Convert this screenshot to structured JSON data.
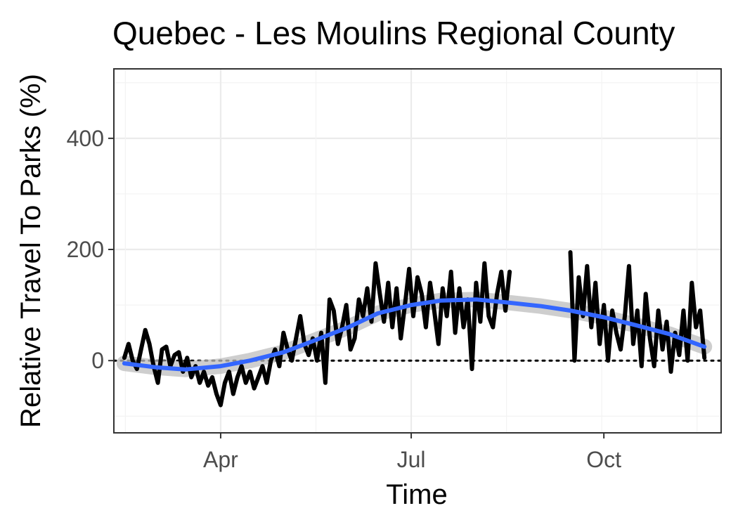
{
  "chart_data": {
    "type": "line",
    "title": "Quebec - Les Moulins Regional County",
    "xlabel": "Time",
    "ylabel": "Relative Travel To Parks (%)",
    "x_range": [
      "2020-02-10",
      "2020-11-26"
    ],
    "ylim": [
      -130,
      525
    ],
    "x_ticks": [
      {
        "date": "2020-04-01",
        "label": "Apr"
      },
      {
        "date": "2020-07-01",
        "label": "Jul"
      },
      {
        "date": "2020-10-01",
        "label": "Oct"
      }
    ],
    "y_ticks": [
      0,
      200,
      400
    ],
    "grid": true,
    "reference_line": {
      "y": 0,
      "style": "dotted",
      "color": "#000000"
    },
    "colors": {
      "series": "#000000",
      "smooth": "#3366ff",
      "ribbon": "#bdbdbd",
      "panel_border": "#333333"
    },
    "series": [
      {
        "type": "line",
        "color": "#000000",
        "points": [
          [
            "2020-02-15",
            5
          ],
          [
            "2020-02-17",
            30
          ],
          [
            "2020-02-19",
            0
          ],
          [
            "2020-02-21",
            -15
          ],
          [
            "2020-02-23",
            20
          ],
          [
            "2020-02-25",
            55
          ],
          [
            "2020-02-27",
            30
          ],
          [
            "2020-02-29",
            -10
          ],
          [
            "2020-03-02",
            -40
          ],
          [
            "2020-03-04",
            20
          ],
          [
            "2020-03-06",
            25
          ],
          [
            "2020-03-08",
            -10
          ],
          [
            "2020-03-10",
            10
          ],
          [
            "2020-03-12",
            15
          ],
          [
            "2020-03-14",
            -20
          ],
          [
            "2020-03-16",
            5
          ],
          [
            "2020-03-18",
            -30
          ],
          [
            "2020-03-20",
            -10
          ],
          [
            "2020-03-22",
            -40
          ],
          [
            "2020-03-24",
            -20
          ],
          [
            "2020-03-26",
            -45
          ],
          [
            "2020-03-28",
            -30
          ],
          [
            "2020-03-30",
            -60
          ],
          [
            "2020-04-01",
            -80
          ],
          [
            "2020-04-03",
            -40
          ],
          [
            "2020-04-05",
            -20
          ],
          [
            "2020-04-07",
            -60
          ],
          [
            "2020-04-09",
            -30
          ],
          [
            "2020-04-11",
            -10
          ],
          [
            "2020-04-13",
            -40
          ],
          [
            "2020-04-15",
            -20
          ],
          [
            "2020-04-17",
            -50
          ],
          [
            "2020-04-19",
            -30
          ],
          [
            "2020-04-21",
            -10
          ],
          [
            "2020-04-23",
            -40
          ],
          [
            "2020-04-25",
            0
          ],
          [
            "2020-04-27",
            20
          ],
          [
            "2020-04-29",
            -10
          ],
          [
            "2020-05-01",
            50
          ],
          [
            "2020-05-03",
            20
          ],
          [
            "2020-05-05",
            0
          ],
          [
            "2020-05-07",
            40
          ],
          [
            "2020-05-09",
            80
          ],
          [
            "2020-05-11",
            30
          ],
          [
            "2020-05-13",
            10
          ],
          [
            "2020-05-15",
            40
          ],
          [
            "2020-05-17",
            0
          ],
          [
            "2020-05-19",
            50
          ],
          [
            "2020-05-21",
            -40
          ],
          [
            "2020-05-23",
            110
          ],
          [
            "2020-05-25",
            90
          ],
          [
            "2020-05-27",
            30
          ],
          [
            "2020-05-29",
            60
          ],
          [
            "2020-05-31",
            100
          ],
          [
            "2020-06-02",
            20
          ],
          [
            "2020-06-04",
            40
          ],
          [
            "2020-06-06",
            110
          ],
          [
            "2020-06-08",
            80
          ],
          [
            "2020-06-10",
            130
          ],
          [
            "2020-06-12",
            70
          ],
          [
            "2020-06-14",
            175
          ],
          [
            "2020-06-16",
            120
          ],
          [
            "2020-06-18",
            70
          ],
          [
            "2020-06-20",
            140
          ],
          [
            "2020-06-22",
            60
          ],
          [
            "2020-06-24",
            130
          ],
          [
            "2020-06-26",
            40
          ],
          [
            "2020-06-28",
            100
          ],
          [
            "2020-06-30",
            165
          ],
          [
            "2020-07-02",
            80
          ],
          [
            "2020-07-04",
            150
          ],
          [
            "2020-07-06",
            120
          ],
          [
            "2020-07-08",
            60
          ],
          [
            "2020-07-10",
            140
          ],
          [
            "2020-07-12",
            90
          ],
          [
            "2020-07-14",
            30
          ],
          [
            "2020-07-16",
            130
          ],
          [
            "2020-07-18",
            80
          ],
          [
            "2020-07-20",
            160
          ],
          [
            "2020-07-22",
            50
          ],
          [
            "2020-07-24",
            130
          ],
          [
            "2020-07-26",
            60
          ],
          [
            "2020-07-28",
            110
          ],
          [
            "2020-07-30",
            -15
          ],
          [
            "2020-08-01",
            140
          ],
          [
            "2020-08-03",
            70
          ],
          [
            "2020-08-05",
            175
          ],
          [
            "2020-08-07",
            80
          ],
          [
            "2020-08-09",
            60
          ],
          [
            "2020-08-11",
            120
          ],
          [
            "2020-08-13",
            160
          ],
          [
            "2020-08-15",
            90
          ],
          [
            "2020-08-17",
            160
          ]
        ]
      },
      {
        "type": "line",
        "color": "#000000",
        "points": [
          [
            "2020-09-15",
            195
          ],
          [
            "2020-09-17",
            0
          ],
          [
            "2020-09-19",
            150
          ],
          [
            "2020-09-21",
            80
          ],
          [
            "2020-09-23",
            170
          ],
          [
            "2020-09-25",
            60
          ],
          [
            "2020-09-27",
            140
          ],
          [
            "2020-09-29",
            30
          ],
          [
            "2020-10-01",
            100
          ],
          [
            "2020-10-03",
            0
          ],
          [
            "2020-10-05",
            90
          ],
          [
            "2020-10-07",
            50
          ],
          [
            "2020-10-09",
            20
          ],
          [
            "2020-10-11",
            80
          ],
          [
            "2020-10-13",
            170
          ],
          [
            "2020-10-15",
            30
          ],
          [
            "2020-10-17",
            90
          ],
          [
            "2020-10-19",
            -10
          ],
          [
            "2020-10-21",
            120
          ],
          [
            "2020-10-23",
            40
          ],
          [
            "2020-10-25",
            -10
          ],
          [
            "2020-10-27",
            90
          ],
          [
            "2020-10-29",
            20
          ],
          [
            "2020-10-31",
            70
          ],
          [
            "2020-11-02",
            -20
          ],
          [
            "2020-11-04",
            50
          ],
          [
            "2020-11-06",
            10
          ],
          [
            "2020-11-08",
            90
          ],
          [
            "2020-11-10",
            0
          ],
          [
            "2020-11-12",
            140
          ],
          [
            "2020-11-14",
            60
          ],
          [
            "2020-11-16",
            90
          ],
          [
            "2020-11-18",
            5
          ]
        ]
      },
      {
        "type": "smooth",
        "color": "#3366ff",
        "points": [
          [
            "2020-02-15",
            -5
          ],
          [
            "2020-03-01",
            -12
          ],
          [
            "2020-03-15",
            -16
          ],
          [
            "2020-04-01",
            -10
          ],
          [
            "2020-04-15",
            0
          ],
          [
            "2020-05-01",
            15
          ],
          [
            "2020-05-15",
            35
          ],
          [
            "2020-06-01",
            60
          ],
          [
            "2020-06-15",
            85
          ],
          [
            "2020-07-01",
            100
          ],
          [
            "2020-07-15",
            108
          ],
          [
            "2020-08-01",
            110
          ],
          [
            "2020-08-15",
            105
          ],
          [
            "2020-09-01",
            98
          ],
          [
            "2020-09-15",
            90
          ],
          [
            "2020-10-01",
            78
          ],
          [
            "2020-10-15",
            65
          ],
          [
            "2020-11-01",
            48
          ],
          [
            "2020-11-18",
            25
          ]
        ]
      }
    ]
  }
}
